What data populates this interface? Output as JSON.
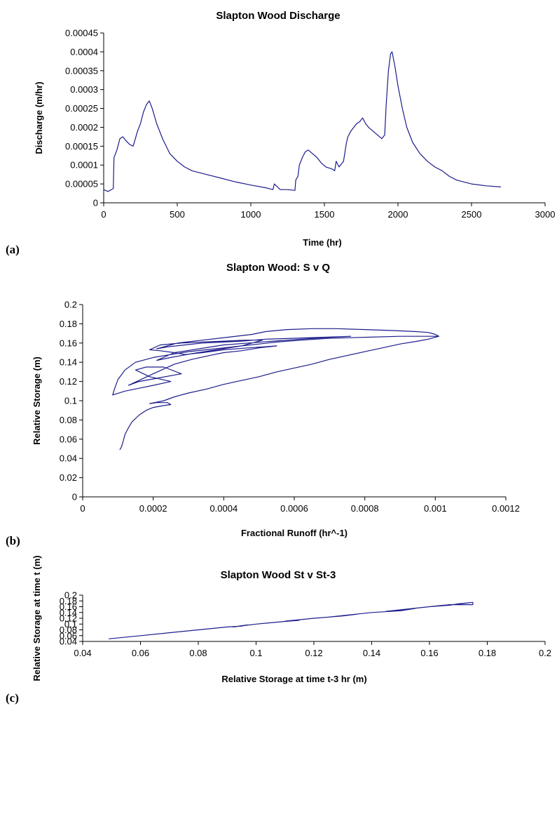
{
  "panels": [
    {
      "label": "(a)",
      "chart_data": {
        "type": "line",
        "title": "Slapton Wood Discharge",
        "xlabel": "Time (hr)",
        "ylabel": "Discharge (m/hr)",
        "xlim": [
          0,
          3000
        ],
        "ylim": [
          0,
          0.00045
        ],
        "xticks": [
          0,
          500,
          1000,
          1500,
          2000,
          2500,
          3000
        ],
        "xtick_labels": [
          "0",
          "500",
          "1000",
          "1500",
          "2000",
          "2500",
          "3000"
        ],
        "yticks": [
          0,
          5e-05,
          0.0001,
          0.00015,
          0.0002,
          0.00025,
          0.0003,
          0.00035,
          0.0004,
          0.00045
        ],
        "ytick_labels": [
          "0",
          "0.00005",
          "0.0001",
          "0.00015",
          "0.0002",
          "0.00025",
          "0.0003",
          "0.00035",
          "0.0004",
          "0.00045"
        ],
        "grid": false,
        "legend": "none",
        "series_color": "#1c1c8c",
        "series": [
          {
            "x": [
              0,
              30,
              65,
              70,
              90,
              110,
              130,
              150,
              175,
              200,
              215,
              230,
              250,
              270,
              290,
              310,
              330,
              360,
              400,
              450,
              500,
              550,
              600,
              700,
              800,
              900,
              1000,
              1100,
              1150,
              1160,
              1200,
              1250,
              1300,
              1305,
              1320,
              1330,
              1350,
              1370,
              1390,
              1420,
              1450,
              1480,
              1510,
              1550,
              1570,
              1580,
              1600,
              1630,
              1650,
              1660,
              1680,
              1700,
              1720,
              1740,
              1760,
              1780,
              1800,
              1830,
              1860,
              1890,
              1910,
              1920,
              1935,
              1950,
              1960,
              1980,
              2000,
              2030,
              2060,
              2100,
              2150,
              2200,
              2250,
              2300,
              2350,
              2400,
              2500,
              2600,
              2700
            ],
            "y": [
              3.5e-05,
              3e-05,
              3.8e-05,
              0.00012,
              0.00014,
              0.00017,
              0.000175,
              0.000165,
              0.000155,
              0.00015,
              0.00017,
              0.00019,
              0.00021,
              0.00024,
              0.00026,
              0.00027,
              0.00025,
              0.00021,
              0.00017,
              0.00013,
              0.00011,
              9.5e-05,
              8.5e-05,
              7.5e-05,
              6.5e-05,
              5.5e-05,
              4.7e-05,
              4e-05,
              3.5e-05,
              5e-05,
              3.5e-05,
              3.5e-05,
              3.3e-05,
              6e-05,
              7e-05,
              0.0001,
              0.00012,
              0.000135,
              0.00014,
              0.00013,
              0.00012,
              0.000105,
              9.5e-05,
              9e-05,
              8.5e-05,
              0.00011,
              9.5e-05,
              0.00011,
              0.00016,
              0.000175,
              0.00019,
              0.0002,
              0.00021,
              0.000215,
              0.000225,
              0.00021,
              0.0002,
              0.00019,
              0.00018,
              0.00017,
              0.00018,
              0.00026,
              0.00035,
              0.000395,
              0.0004,
              0.00036,
              0.00031,
              0.00025,
              0.0002,
              0.00016,
              0.00013,
              0.00011,
              9.5e-05,
              8.5e-05,
              7e-05,
              6e-05,
              5e-05,
              4.5e-05,
              4.2e-05
            ]
          }
        ]
      }
    },
    {
      "label": "(b)",
      "chart_data": {
        "type": "line",
        "title": "Slapton Wood: S v Q",
        "xlabel": "Fractional Runoff (hr^-1)",
        "ylabel": "Relative Storage (m)",
        "xlim": [
          0,
          0.0012
        ],
        "ylim": [
          0,
          0.2
        ],
        "xticks": [
          0,
          0.0002,
          0.0004,
          0.0006,
          0.0008,
          0.001,
          0.0012
        ],
        "xtick_labels": [
          "0",
          "0.0002",
          "0.0004",
          "0.0006",
          "0.0008",
          "0.001",
          "0.0012"
        ],
        "yticks": [
          0,
          0.02,
          0.04,
          0.06,
          0.08,
          0.1,
          0.12,
          0.14,
          0.16,
          0.18,
          0.2
        ],
        "ytick_labels": [
          "0",
          "0.02",
          "0.04",
          "0.06",
          "0.08",
          "0.1",
          "0.12",
          "0.14",
          "0.16",
          "0.18",
          "0.2"
        ],
        "grid": false,
        "legend": "none",
        "series_color": "#1c1c8c",
        "series": [
          {
            "x": [
              0.000105,
              0.00011,
              0.000115,
              0.00012,
              0.00013,
              0.00014,
              0.00016,
              0.00018,
              0.0002,
              0.00023,
              0.00025,
              0.00024,
              0.00021,
              0.00019,
              0.00023,
              0.00026,
              0.0003,
              0.00035,
              0.0004,
              0.00045,
              0.0005,
              0.00055,
              0.0006,
              0.00065,
              0.0007,
              0.00075,
              0.0008,
              0.00085,
              0.0009,
              0.00095,
              0.00098,
              0.001,
              0.00101,
              0.00099,
              0.0009,
              0.0008,
              0.0007,
              0.00062,
              0.00055,
              0.0005,
              0.00045,
              0.0004,
              0.00035,
              0.0003,
              0.00025,
              0.0002,
              0.00015,
              0.00012,
              0.0001,
              9e-05,
              8.5e-05,
              0.00012,
              0.00016,
              0.0002,
              0.00025,
              0.00019,
              0.00015,
              0.00018,
              0.00023,
              0.00028,
              0.00022,
              0.00016,
              0.00013,
              0.0002,
              0.00026,
              0.00031,
              0.00036,
              0.0004,
              0.00045,
              0.0005,
              0.00055,
              0.00047,
              0.0004,
              0.00034,
              0.00029,
              0.00026,
              0.00022,
              0.00019,
              0.00022,
              0.00028,
              0.00034,
              0.0004,
              0.00046,
              0.00051,
              0.00045,
              0.00038,
              0.00031,
              0.00025,
              0.00021,
              0.00026,
              0.00033,
              0.0004,
              0.00047,
              0.00054,
              0.00062,
              0.0007,
              0.00076,
              0.00068,
              0.0006,
              0.00052,
              0.00045,
              0.0004,
              0.00034,
              0.00029,
              0.00024,
              0.00021,
              0.00027,
              0.00034,
              0.00041,
              0.00048,
              0.00052,
              0.00058,
              0.00065,
              0.00072,
              0.0008,
              0.00088,
              0.00094,
              0.00098,
              0.001,
              0.00101
            ],
            "y": [
              0.049,
              0.052,
              0.058,
              0.065,
              0.072,
              0.078,
              0.085,
              0.09,
              0.093,
              0.095,
              0.096,
              0.098,
              0.098,
              0.097,
              0.1,
              0.104,
              0.108,
              0.112,
              0.117,
              0.121,
              0.125,
              0.13,
              0.134,
              0.138,
              0.143,
              0.147,
              0.151,
              0.155,
              0.159,
              0.162,
              0.164,
              0.166,
              0.167,
              0.167,
              0.167,
              0.166,
              0.165,
              0.163,
              0.161,
              0.159,
              0.157,
              0.155,
              0.153,
              0.151,
              0.148,
              0.145,
              0.14,
              0.132,
              0.122,
              0.112,
              0.106,
              0.11,
              0.113,
              0.116,
              0.12,
              0.125,
              0.132,
              0.135,
              0.135,
              0.128,
              0.124,
              0.12,
              0.116,
              0.128,
              0.138,
              0.143,
              0.147,
              0.15,
              0.152,
              0.155,
              0.157,
              0.155,
              0.153,
              0.15,
              0.148,
              0.15,
              0.152,
              0.153,
              0.158,
              0.16,
              0.161,
              0.162,
              0.163,
              0.163,
              0.157,
              0.153,
              0.149,
              0.145,
              0.142,
              0.15,
              0.154,
              0.158,
              0.16,
              0.162,
              0.164,
              0.166,
              0.167,
              0.166,
              0.165,
              0.164,
              0.162,
              0.161,
              0.16,
              0.158,
              0.156,
              0.154,
              0.16,
              0.163,
              0.166,
              0.169,
              0.172,
              0.174,
              0.175,
              0.175,
              0.174,
              0.173,
              0.172,
              0.171,
              0.169,
              0.167
            ]
          }
        ]
      }
    },
    {
      "label": "(c)",
      "chart_data": {
        "type": "line",
        "title": "Slapton Wood St v St-3",
        "xlabel": "Relative Storage at time t-3 hr (m)",
        "ylabel": "Relative Storage at time t (m)",
        "xlim": [
          0.04,
          0.2
        ],
        "ylim": [
          0.04,
          0.2
        ],
        "xticks": [
          0.04,
          0.06,
          0.08,
          0.1,
          0.12,
          0.14,
          0.16,
          0.18,
          0.2
        ],
        "xtick_labels": [
          "0.04",
          "0.06",
          "0.08",
          "0.1",
          "0.12",
          "0.14",
          "0.16",
          "0.18",
          "0.2"
        ],
        "yticks": [
          0.04,
          0.06,
          0.08,
          0.1,
          0.12,
          0.14,
          0.16,
          0.18,
          0.2
        ],
        "ytick_labels": [
          "0.04",
          "0.06",
          "0.08",
          "0.1",
          "0.12",
          "0.14",
          "0.16",
          "0.18",
          "0.2"
        ],
        "grid": false,
        "legend": "none",
        "series_color": "#1c1c8c",
        "series": [
          {
            "x": [
              0.049,
              0.06,
              0.07,
              0.08,
              0.09,
              0.095,
              0.097,
              0.092,
              0.1,
              0.11,
              0.115,
              0.11,
              0.12,
              0.13,
              0.135,
              0.125,
              0.14,
              0.15,
              0.155,
              0.145,
              0.16,
              0.167,
              0.17,
              0.175,
              0.175,
              0.167,
              0.16,
              0.165,
              0.17,
              0.175
            ],
            "y": [
              0.049,
              0.06,
              0.07,
              0.08,
              0.09,
              0.093,
              0.097,
              0.09,
              0.1,
              0.109,
              0.113,
              0.11,
              0.12,
              0.128,
              0.134,
              0.124,
              0.14,
              0.146,
              0.154,
              0.144,
              0.16,
              0.165,
              0.17,
              0.175,
              0.167,
              0.167,
              0.16,
              0.165,
              0.169,
              0.175
            ]
          }
        ]
      }
    }
  ]
}
